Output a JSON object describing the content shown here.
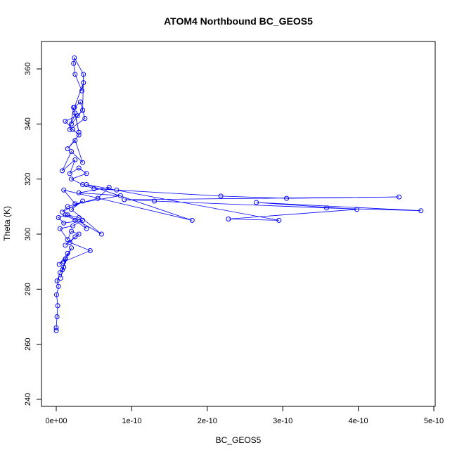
{
  "chart_data": {
    "type": "line",
    "title": "ATOM4 Northbound BC_GEOS5",
    "xlabel": "BC_GEOS5",
    "ylabel": "Theta (K)",
    "xlim": [
      0,
      5e-10
    ],
    "ylim": [
      240,
      370
    ],
    "grid": false,
    "x_ticks": [
      {
        "value": 0,
        "label": "0e+00"
      },
      {
        "value": 1e-10,
        "label": "1e-10"
      },
      {
        "value": 2e-10,
        "label": "2e-10"
      },
      {
        "value": 3e-10,
        "label": "3e-10"
      },
      {
        "value": 4e-10,
        "label": "4e-10"
      },
      {
        "value": 5e-10,
        "label": "5e-10"
      }
    ],
    "y_ticks": [
      {
        "value": 240,
        "label": "240"
      },
      {
        "value": 260,
        "label": "260"
      },
      {
        "value": 280,
        "label": "280"
      },
      {
        "value": 300,
        "label": "300"
      },
      {
        "value": 320,
        "label": "320"
      },
      {
        "value": 340,
        "label": "340"
      },
      {
        "value": 360,
        "label": "360"
      }
    ],
    "series": [
      {
        "color": "#0000ff",
        "marker": "open-circle",
        "x": [
          0.0,
          0.0,
          1e-12,
          2e-12,
          5e-13,
          3e-12,
          1e-12,
          5e-12,
          1e-11,
          6e-12,
          1.2e-11,
          4e-12,
          1.5e-11,
          8e-12,
          2e-11,
          1e-11,
          4.5e-11,
          1.8e-11,
          2.5e-11,
          1.2e-11,
          3e-11,
          2e-11,
          1.5e-11,
          5e-12,
          2.2e-11,
          3.5e-11,
          1e-11,
          3e-12,
          1.2e-11,
          2.5e-11,
          4e-11,
          3e-11,
          1.5e-11,
          6e-11,
          2e-11,
          3.5e-11,
          8e-12,
          1.5e-11,
          5.5e-11,
          7e-11,
          3e-11,
          8.5e-11,
          2.5e-11,
          1e-11,
          1.8e-10,
          4e-11,
          2.95e-10,
          2.28e-10,
          3.98e-10,
          2.65e-10,
          4.83e-10,
          3.58e-10,
          1.3e-10,
          9e-11,
          4.54e-10,
          3.05e-10,
          2.18e-10,
          8e-11,
          5e-11,
          3.5e-11,
          2e-11,
          4e-11,
          3e-11,
          1.8e-11,
          2.5e-11,
          8e-12,
          2e-11,
          3.5e-11,
          2.5e-11,
          1.5e-11,
          3e-11,
          2.2e-11,
          1.2e-11,
          2.8e-11,
          3.5e-11,
          2e-11,
          2.5e-11,
          3e-11,
          2.3e-11,
          1.8e-11,
          3.8e-11,
          3.2e-11,
          2.4e-11,
          3.6e-11,
          3.4e-11,
          2.5e-11,
          2.3e-11,
          2.4e-11,
          3.6e-11,
          3.5e-11
        ],
        "y": [
          265,
          266,
          270,
          274,
          278,
          281,
          283,
          286,
          288,
          284,
          291,
          289,
          293,
          287,
          295,
          290,
          294,
          297,
          299,
          296,
          300,
          301,
          298,
          302,
          303,
          305,
          304,
          306,
          307,
          305,
          302,
          306,
          307,
          300,
          309,
          312,
          308,
          310,
          313,
          317,
          315,
          314,
          311,
          316,
          305,
          318,
          305,
          305.5,
          309,
          311.5,
          308.5,
          309.5,
          312,
          312.5,
          313.5,
          313,
          313.8,
          316,
          316.5,
          318,
          320,
          322,
          324,
          322,
          327,
          323,
          330,
          326,
          334,
          331,
          336,
          338,
          341,
          343,
          345,
          340,
          344,
          337,
          346,
          338,
          342,
          348,
          346,
          355,
          352,
          358,
          362,
          364,
          358,
          345
        ]
      }
    ]
  }
}
